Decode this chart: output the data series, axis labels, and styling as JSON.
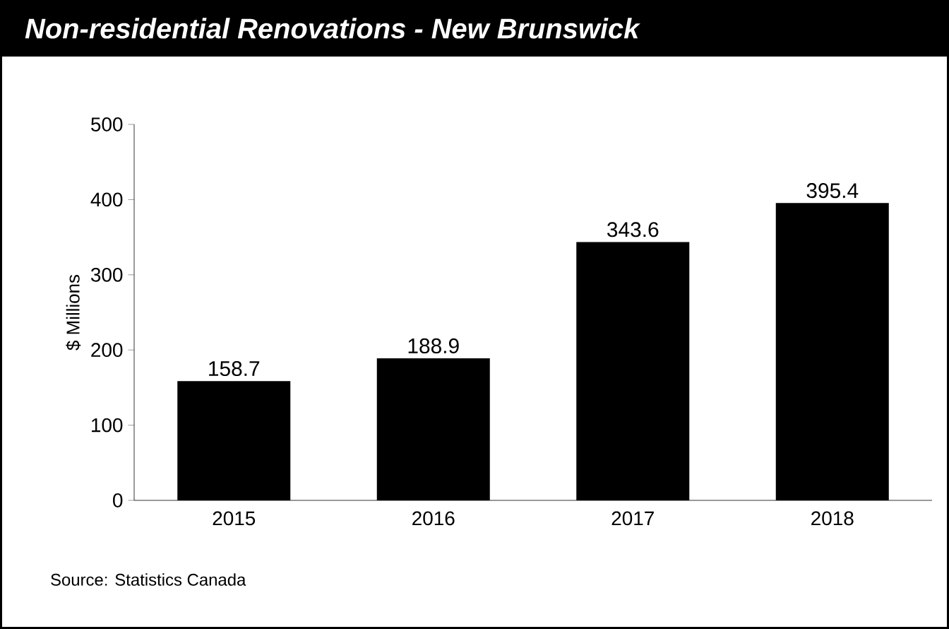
{
  "chart_data": {
    "type": "bar",
    "title": "Non-residential Renovations - New Brunswick",
    "ylabel": "$ Millions",
    "categories": [
      "2015",
      "2016",
      "2017",
      "2018"
    ],
    "values": [
      158.7,
      188.9,
      343.6,
      395.4
    ],
    "color": "#000000",
    "ylim": [
      0,
      500
    ],
    "yticks": [
      0,
      100,
      200,
      300,
      400,
      500
    ],
    "data_labels": true,
    "grid": false,
    "annotations": [
      "Source: Statistics Canada"
    ]
  }
}
